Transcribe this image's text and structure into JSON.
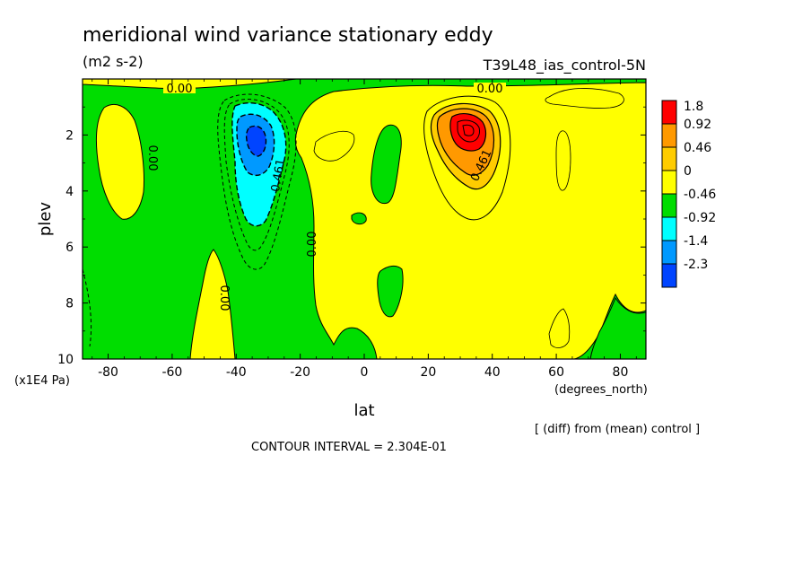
{
  "chart_data": {
    "type": "contour",
    "title": "meridional wind variance  stationary eddy",
    "units": "(m2 s-2)",
    "run_label": "T39L48_ias_control-5N",
    "xlabel": "lat",
    "xunits": "(degrees_north)",
    "ylabel": "plev",
    "yunits": "(x1E4 Pa)",
    "xlim": [
      -88,
      88
    ],
    "ylim": [
      10,
      0
    ],
    "x_ticks": [
      -80,
      -60,
      -40,
      -20,
      0,
      20,
      40,
      60,
      80
    ],
    "y_ticks": [
      2,
      4,
      6,
      8,
      10
    ],
    "x_tick_labels": [
      "-80",
      "-60",
      "-40",
      "-20",
      "0",
      "20",
      "40",
      "60",
      "80"
    ],
    "y_tick_labels": [
      "2",
      "4",
      "6",
      "8",
      "10"
    ],
    "contour_interval_text": "CONTOUR INTERVAL = 2.304E-01",
    "note": "[ (diff) from (mean) control ]",
    "contour_labels": [
      "0.00",
      "0.00",
      "0.00",
      "0.00",
      "0.00",
      "0.461",
      "0.461"
    ],
    "colorbar": {
      "labels": [
        "1.8",
        "0.92",
        "0.46",
        "0",
        "-0.46",
        "-0.92",
        "-1.4",
        "-2.3"
      ],
      "colors": [
        "#ff0000",
        "#ff9900",
        "#ffcc00",
        "#ffff00",
        "#00dd00",
        "#00ffff",
        "#0099ff",
        "#0044ff"
      ]
    },
    "features": [
      {
        "sign": "negative",
        "center_lat": -35,
        "center_plev": 2.3,
        "peak": -2.3
      },
      {
        "sign": "positive",
        "center_lat": 32,
        "center_plev": 2.0,
        "peak": 1.8
      }
    ]
  }
}
